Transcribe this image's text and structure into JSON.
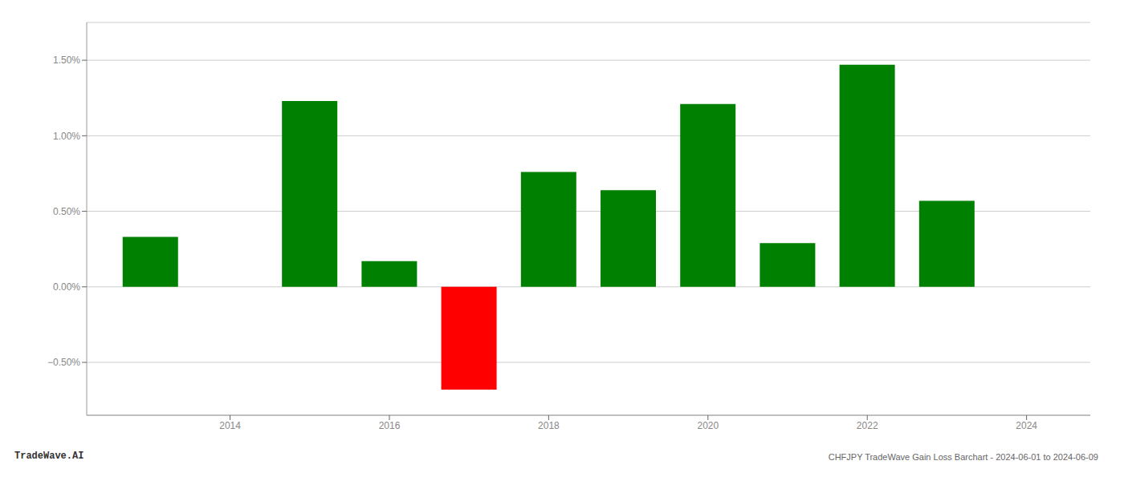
{
  "chart_data": {
    "type": "bar",
    "title": "CHFJPY TradeWave Gain Loss Barchart - 2024-06-01 to 2024-06-09",
    "annotations": [
      "TradeWave.AI"
    ],
    "x": [
      2013,
      2015,
      2016,
      2017,
      2018,
      2019,
      2020,
      2021,
      2022,
      2023
    ],
    "values": [
      0.0033,
      0.0123,
      0.0017,
      -0.0068,
      0.0076,
      0.0064,
      0.0121,
      0.0029,
      0.0147,
      0.0057
    ],
    "colors": [
      "#008000",
      "#008000",
      "#008000",
      "#ff0000",
      "#008000",
      "#008000",
      "#008000",
      "#008000",
      "#008000",
      "#008000"
    ],
    "xlim": [
      2012.2,
      2024.8
    ],
    "xticks": [
      2014,
      2016,
      2018,
      2020,
      2022,
      2024
    ],
    "ylim": [
      -0.0085,
      0.0175
    ],
    "yticks": [
      {
        "value": -0.005,
        "label": "−0.50%"
      },
      {
        "value": 0.0,
        "label": "0.00%"
      },
      {
        "value": 0.005,
        "label": "0.50%"
      },
      {
        "value": 0.01,
        "label": "1.00%"
      },
      {
        "value": 0.015,
        "label": "1.50%"
      }
    ],
    "grid": true
  }
}
